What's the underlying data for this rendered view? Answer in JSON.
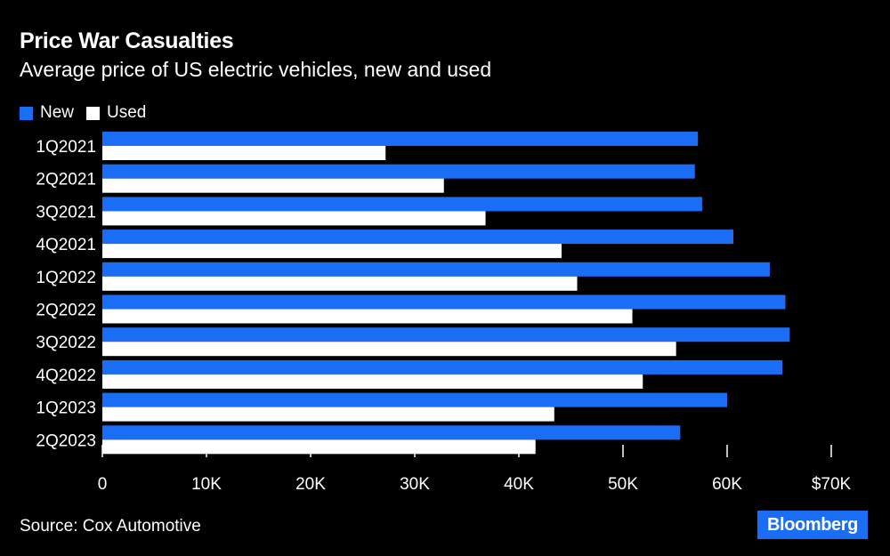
{
  "chart_data": {
    "type": "bar",
    "orientation": "horizontal",
    "title": "Price War Casualties",
    "subtitle": "Average price of US electric vehicles, new and used",
    "categories": [
      "1Q2021",
      "2Q2021",
      "3Q2021",
      "4Q2021",
      "1Q2022",
      "2Q2022",
      "3Q2022",
      "4Q2022",
      "1Q2023",
      "2Q2023"
    ],
    "series": [
      {
        "name": "New",
        "color": "#1a6ef5",
        "values": [
          57.2,
          56.9,
          57.6,
          60.6,
          64.1,
          65.6,
          66.0,
          65.3,
          60.0,
          55.5
        ]
      },
      {
        "name": "Used",
        "color": "#ffffff",
        "values": [
          27.2,
          32.8,
          36.8,
          44.1,
          45.6,
          50.9,
          55.1,
          51.9,
          43.4,
          41.6
        ]
      }
    ],
    "xlim": [
      0,
      70
    ],
    "x_ticks": [
      0,
      10,
      20,
      30,
      40,
      50,
      60,
      70
    ],
    "x_tick_labels": [
      "0",
      "10K",
      "20K",
      "30K",
      "40K",
      "50K",
      "60K",
      "$70K"
    ],
    "legend_position": "top-left",
    "grid": false
  },
  "source": "Source: Cox Automotive",
  "logo": "Bloomberg"
}
